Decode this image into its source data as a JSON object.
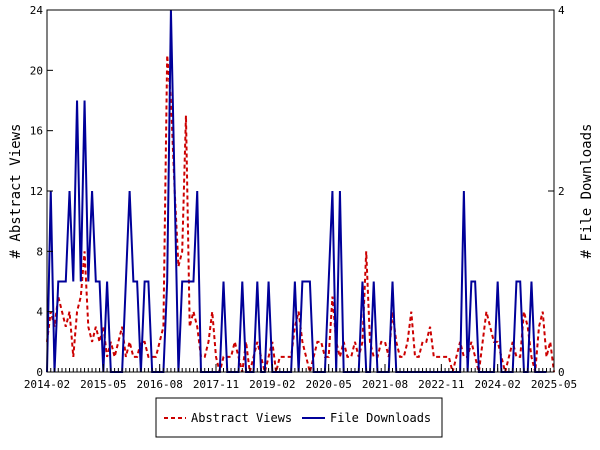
{
  "chart_data": {
    "type": "line",
    "title": "",
    "x_tick_labels": [
      "2014-02",
      "2015-05",
      "2016-08",
      "2017-11",
      "2019-02",
      "2020-05",
      "2021-08",
      "2022-11",
      "2024-02",
      "2025-05"
    ],
    "y_left": {
      "label": "# Abstract Views",
      "ylim": [
        0,
        24
      ],
      "ticks": [
        0,
        4,
        8,
        12,
        16,
        20,
        24
      ]
    },
    "y_right": {
      "label": "# File Downloads",
      "ylim": [
        0,
        4
      ],
      "ticks": [
        0,
        2,
        4
      ]
    },
    "grid": false,
    "legend_position": "bottom-center",
    "series": [
      {
        "name": "Abstract Views",
        "axis": "left",
        "color": "#cc0000",
        "style": "dashed",
        "values": [
          2,
          4,
          3,
          5,
          4,
          3,
          4,
          1,
          4,
          5,
          8,
          3,
          2,
          3,
          2,
          3,
          1,
          2,
          1,
          2,
          3,
          1,
          2,
          1,
          1,
          2,
          2,
          1,
          1,
          1,
          2,
          3,
          21,
          18,
          12,
          7,
          8,
          17,
          3,
          4,
          3,
          1,
          1,
          2,
          4,
          1,
          0,
          1,
          1,
          1,
          2,
          1,
          0,
          2,
          0,
          1,
          2,
          1,
          0,
          1,
          2,
          0,
          1,
          1,
          1,
          1,
          3,
          4,
          2,
          1,
          0,
          1,
          2,
          2,
          1,
          1,
          5,
          2,
          1,
          2,
          1,
          1,
          2,
          1,
          2,
          8,
          2,
          1,
          1,
          2,
          2,
          1,
          4,
          2,
          1,
          1,
          2,
          4,
          1,
          1,
          2,
          2,
          3,
          1,
          1,
          1,
          1,
          1,
          0,
          1,
          2,
          1,
          1,
          2,
          1,
          0,
          2,
          4,
          3,
          2,
          2,
          1,
          0,
          1,
          2,
          1,
          1,
          4,
          3,
          1,
          0,
          3,
          4,
          1,
          2,
          0
        ]
      },
      {
        "name": "File Downloads",
        "axis": "right",
        "color": "#000099",
        "style": "solid",
        "values": [
          0,
          2,
          0,
          1,
          1,
          1,
          2,
          1,
          3,
          1,
          3,
          1,
          2,
          1,
          1,
          0,
          1,
          0,
          0,
          0,
          0,
          1,
          2,
          1,
          1,
          0,
          1,
          1,
          0,
          0,
          0,
          0,
          1,
          4,
          2,
          0,
          1,
          1,
          1,
          1,
          2,
          0,
          0,
          0,
          0,
          0,
          0,
          1,
          0,
          0,
          0,
          0,
          1,
          0,
          0,
          0,
          1,
          0,
          0,
          1,
          0,
          0,
          0,
          0,
          0,
          0,
          1,
          0,
          1,
          1,
          1,
          0,
          0,
          0,
          0,
          1,
          2,
          0,
          2,
          0,
          0,
          0,
          0,
          0,
          1,
          0,
          0,
          1,
          0,
          0,
          0,
          0,
          1,
          0,
          0,
          0,
          0,
          0,
          0,
          0,
          0,
          0,
          0,
          0,
          0,
          0,
          0,
          0,
          0,
          0,
          0,
          2,
          0,
          1,
          1,
          0,
          0,
          0,
          0,
          0,
          1,
          0,
          0,
          0,
          0,
          1,
          1,
          0,
          0,
          1,
          0,
          0,
          0,
          0
        ]
      }
    ]
  }
}
